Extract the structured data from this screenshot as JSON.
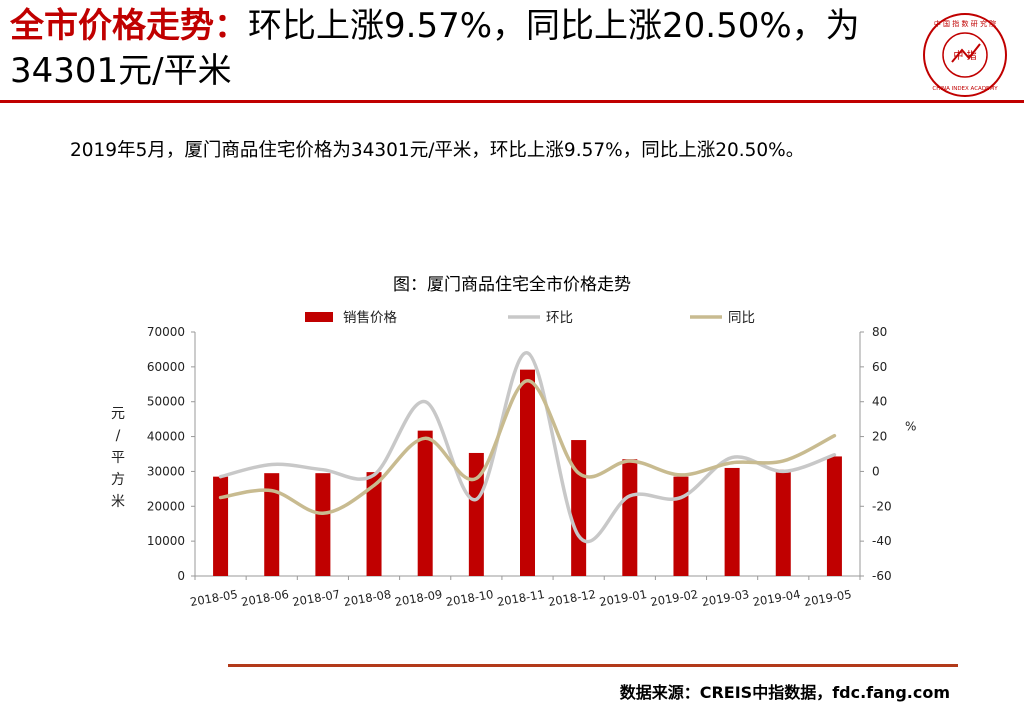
{
  "header": {
    "title_highlight": "全市价格走势：",
    "title_rest": "环比上涨9.57%，同比上涨20.50%，为34301元/平米"
  },
  "logo": {
    "icon": "china-index-academy-seal-icon",
    "center_text": "中 指",
    "ring_text_top": "中 国 指 数 研 究 院",
    "ring_text_bottom": "CHINA INDEX ACADEMY"
  },
  "summary": "2019年5月，厦门商品住宅价格为34301元/平米，环比上涨9.57%，同比上涨20.50%。",
  "chart_title": "图：厦门商品住宅全市价格走势",
  "source": "数据来源：CREIS中指数据，fdc.fang.com",
  "colors": {
    "accent": "#c00000",
    "bar": "#c00000",
    "mom_line": "#c8c8c8",
    "yoy_line": "#c8bb90",
    "rule_bottom": "#b23a1a"
  },
  "chart_data": {
    "type": "bar",
    "title": "图：厦门商品住宅全市价格走势",
    "categories": [
      "2018-05",
      "2018-06",
      "2018-07",
      "2018-08",
      "2018-09",
      "2018-10",
      "2018-11",
      "2018-12",
      "2019-01",
      "2019-02",
      "2019-03",
      "2019-04",
      "2019-05"
    ],
    "ylabel": "元/平方米",
    "y2label": "%",
    "ylim": [
      0,
      70000
    ],
    "yticks": [
      0,
      10000,
      20000,
      30000,
      40000,
      50000,
      60000,
      70000
    ],
    "y2lim": [
      -60,
      80
    ],
    "y2ticks": [
      -60,
      -40,
      -20,
      0,
      20,
      40,
      60,
      80
    ],
    "legend_position": "top",
    "grid": false,
    "series": [
      {
        "name": "销售价格",
        "type": "bar",
        "axis": "left",
        "color": "#c00000",
        "values": [
          28500,
          29500,
          29500,
          29800,
          41700,
          35300,
          59200,
          39000,
          33500,
          28500,
          31000,
          30500,
          34301
        ]
      },
      {
        "name": "环比",
        "type": "line",
        "axis": "right",
        "color": "#c8c8c8",
        "values": [
          -3,
          4,
          1,
          -2,
          40,
          -16,
          68,
          -37,
          -14,
          -15,
          8,
          0,
          9.57
        ]
      },
      {
        "name": "同比",
        "type": "line",
        "axis": "right",
        "color": "#c8bb90",
        "values": [
          -15,
          -11,
          -24,
          -8,
          19,
          -4,
          52,
          -1,
          6,
          -2,
          5,
          6,
          20.5
        ]
      }
    ]
  }
}
